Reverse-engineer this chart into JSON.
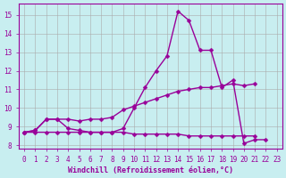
{
  "xlabel": "Windchill (Refroidissement éolien,°C)",
  "background_color": "#c8eef0",
  "line_color": "#990099",
  "grid_color": "#aaaaaa",
  "x_ticks": [
    0,
    1,
    2,
    3,
    4,
    5,
    6,
    7,
    8,
    9,
    10,
    11,
    12,
    13,
    14,
    15,
    16,
    17,
    18,
    19,
    20,
    21,
    22,
    23
  ],
  "y_ticks": [
    8,
    9,
    10,
    11,
    12,
    13,
    14,
    15
  ],
  "ylim": [
    7.8,
    15.6
  ],
  "xlim": [
    -0.5,
    23.5
  ],
  "line1_y": [
    8.7,
    8.8,
    9.4,
    9.4,
    8.9,
    8.8,
    8.7,
    8.7,
    8.7,
    8.9,
    10.0,
    11.1,
    12.0,
    12.8,
    15.2,
    14.7,
    13.1,
    13.1,
    11.1,
    11.5,
    8.1,
    8.3,
    8.3,
    null
  ],
  "line2_y": [
    8.7,
    8.8,
    9.4,
    9.4,
    9.4,
    9.3,
    9.4,
    9.4,
    9.5,
    9.9,
    10.1,
    10.3,
    10.5,
    10.7,
    10.9,
    11.0,
    11.1,
    11.1,
    11.2,
    11.3,
    11.2,
    11.3,
    null,
    null
  ],
  "line3_y": [
    8.7,
    8.7,
    8.7,
    8.7,
    8.7,
    8.7,
    8.7,
    8.7,
    8.7,
    8.7,
    8.6,
    8.6,
    8.6,
    8.6,
    8.6,
    8.5,
    8.5,
    8.5,
    8.5,
    8.5,
    8.5,
    8.5,
    null,
    null
  ],
  "marker_size": 2.5,
  "line_width": 1.0,
  "tick_fontsize": 5.5,
  "xlabel_fontsize": 6.0
}
